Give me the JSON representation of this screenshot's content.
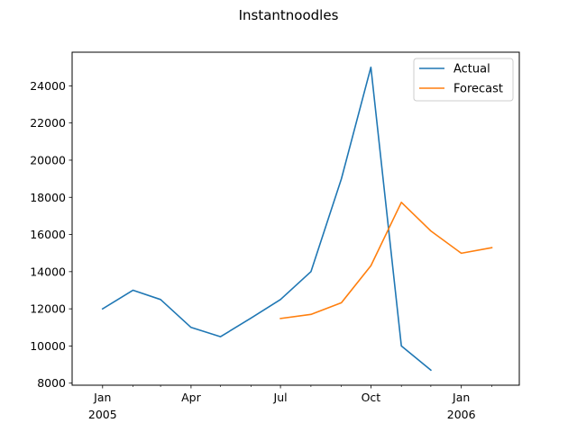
{
  "chart_data": {
    "type": "line",
    "title": "Instantnoodles",
    "xlabel": "",
    "ylabel": "",
    "x_range": [
      "2004-12-01",
      "2006-03-01"
    ],
    "ylim": [
      7890,
      25810
    ],
    "grid": false,
    "legend_position": "top-right",
    "y_ticks": [
      8000,
      10000,
      12000,
      14000,
      16000,
      18000,
      20000,
      22000,
      24000
    ],
    "y_tick_labels": [
      "8000",
      "10000",
      "12000",
      "14000",
      "16000",
      "18000",
      "20000",
      "22000",
      "24000"
    ],
    "x_major_ticks": [
      {
        "date": "2005-01-01",
        "label": "Jan",
        "sublabel": "2005"
      },
      {
        "date": "2005-04-01",
        "label": "Apr",
        "sublabel": ""
      },
      {
        "date": "2005-07-01",
        "label": "Jul",
        "sublabel": ""
      },
      {
        "date": "2005-10-01",
        "label": "Oct",
        "sublabel": ""
      },
      {
        "date": "2006-01-01",
        "label": "Jan",
        "sublabel": "2006"
      }
    ],
    "x_minor_ticks": [
      "2005-02-01",
      "2005-03-01",
      "2005-05-01",
      "2005-06-01",
      "2005-08-01",
      "2005-09-01",
      "2005-11-01",
      "2005-12-01",
      "2006-02-01"
    ],
    "series": [
      {
        "name": "Actual",
        "color": "#1f77b4",
        "points": [
          {
            "x": "2005-01-01",
            "y": 12000
          },
          {
            "x": "2005-02-01",
            "y": 13000
          },
          {
            "x": "2005-03-01",
            "y": 12500
          },
          {
            "x": "2005-04-01",
            "y": 11000
          },
          {
            "x": "2005-05-01",
            "y": 10500
          },
          {
            "x": "2005-06-01",
            "y": 11500
          },
          {
            "x": "2005-07-01",
            "y": 12500
          },
          {
            "x": "2005-08-01",
            "y": 14000
          },
          {
            "x": "2005-09-01",
            "y": 19000
          },
          {
            "x": "2005-10-01",
            "y": 25000
          },
          {
            "x": "2005-11-01",
            "y": 10000
          },
          {
            "x": "2005-12-01",
            "y": 8700
          }
        ]
      },
      {
        "name": "Forecast",
        "color": "#ff7f0e",
        "points": [
          {
            "x": "2005-07-01",
            "y": 11480
          },
          {
            "x": "2005-08-01",
            "y": 11700
          },
          {
            "x": "2005-09-01",
            "y": 12330
          },
          {
            "x": "2005-10-01",
            "y": 14320
          },
          {
            "x": "2005-11-01",
            "y": 17730
          },
          {
            "x": "2005-12-01",
            "y": 16190
          },
          {
            "x": "2006-01-01",
            "y": 14990
          },
          {
            "x": "2006-02-01",
            "y": 15290
          }
        ]
      }
    ]
  }
}
